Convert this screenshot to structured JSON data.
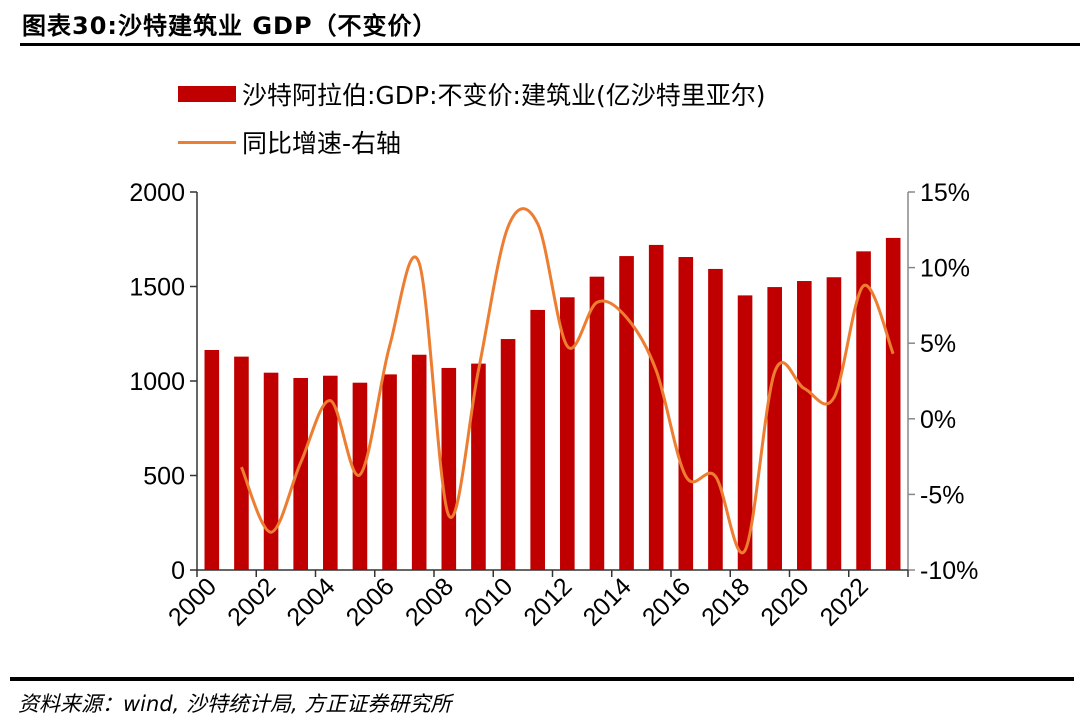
{
  "title": "图表30:沙特建筑业 GDP（不变价）",
  "source": "资料来源：wind, 沙特统计局, 方正证券研究所",
  "chart_data": {
    "type": "bar+line",
    "title": "图表30:沙特建筑业 GDP（不变价）",
    "categories": [
      2000,
      2001,
      2002,
      2003,
      2004,
      2005,
      2006,
      2007,
      2008,
      2009,
      2010,
      2011,
      2012,
      2013,
      2014,
      2015,
      2016,
      2017,
      2018,
      2019,
      2020,
      2021,
      2022,
      2023
    ],
    "x_tick_labels": [
      "2000",
      "2002",
      "2004",
      "2006",
      "2008",
      "2010",
      "2012",
      "2014",
      "2016",
      "2018",
      "2020",
      "2022"
    ],
    "series": [
      {
        "name": "沙特阿拉伯:GDP:不变价:建筑业(亿沙特里亚尔)",
        "type": "bar",
        "axis": "left",
        "color": "#c00000",
        "values": [
          1164,
          1129,
          1044,
          1016,
          1028,
          991,
          1035,
          1139,
          1069,
          1092,
          1222,
          1376,
          1443,
          1552,
          1661,
          1720,
          1656,
          1593,
          1453,
          1497,
          1529,
          1549,
          1686,
          1757
        ]
      },
      {
        "name": "同比增速-右轴",
        "type": "line",
        "axis": "right",
        "color": "#ed7d31",
        "smooth": true,
        "values": [
          null,
          -3.2,
          -7.5,
          -2.9,
          1.2,
          -3.7,
          4.8,
          10.3,
          -6.4,
          3.2,
          12.7,
          12.9,
          4.8,
          7.7,
          6.7,
          3.2,
          -3.8,
          -3.8,
          -8.7,
          3.1,
          2.0,
          1.4,
          8.8,
          4.3
        ]
      }
    ],
    "left_axis": {
      "ylim": [
        0,
        2000
      ],
      "ticks": [
        "0",
        "500",
        "1000",
        "1500",
        "2000"
      ]
    },
    "right_axis": {
      "ylim": [
        -10,
        15
      ],
      "ticks": [
        "-10%",
        "-5%",
        "0%",
        "5%",
        "10%",
        "15%"
      ]
    },
    "grid": false,
    "legend": "top"
  }
}
